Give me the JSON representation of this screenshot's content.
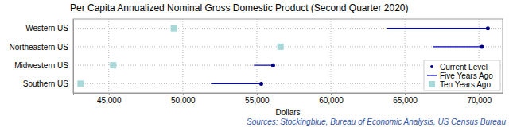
{
  "chart_data": {
    "type": "dot",
    "title": "Per Capita Annualized Nominal Gross Domestic Product (Second Quarter 2020)",
    "x_label": "Dollars",
    "annotation": "Sources: Stockingblue, Bureau of Economic Analysis, US Census Bureau",
    "orientation": "horizontal",
    "categories": [
      "Western US",
      "Northeastern US",
      "Midwestern US",
      "Southern US"
    ],
    "series": [
      {
        "name": "Current Level",
        "color": "#000080",
        "marker": "circle",
        "values": [
          70600,
          70200,
          56100,
          55300
        ]
      },
      {
        "name": "Five Years Ago",
        "color": "#0000cd",
        "line_style": "solid",
        "values": [
          63800,
          66900,
          54800,
          51900
        ]
      },
      {
        "name": "Ten Years Ago",
        "color": "#a8d8d8",
        "marker": "square",
        "values": [
          49400,
          56600,
          45300,
          43100
        ]
      }
    ],
    "xlim": [
      42600,
      71600
    ],
    "xticks": [
      {
        "value": 45000,
        "label": "45,000"
      },
      {
        "value": 50000,
        "label": "50,000"
      },
      {
        "value": 55000,
        "label": "55,000"
      },
      {
        "value": 60000,
        "label": "60,000"
      },
      {
        "value": 65000,
        "label": "65,000"
      },
      {
        "value": 70000,
        "label": "70,000"
      }
    ],
    "grid": true,
    "legend": "lower right"
  }
}
